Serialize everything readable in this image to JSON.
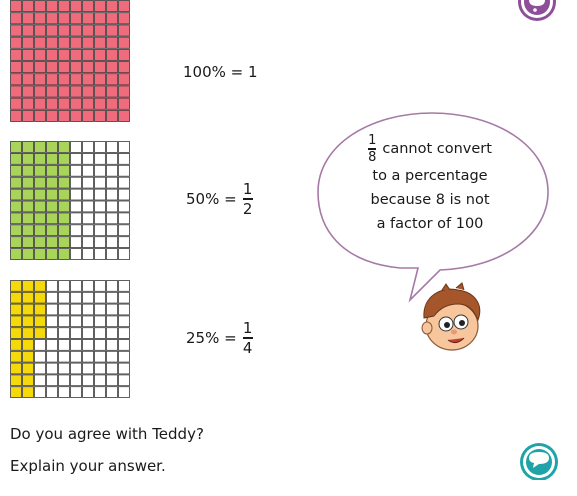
{
  "grids": [
    {
      "name": "grid-100",
      "fill_color": "#f06b7c",
      "filled_cells": 100,
      "total_cells": 100
    },
    {
      "name": "grid-50",
      "fill_color": "#a8d45a",
      "filled_cells": 50,
      "total_cells": 100
    },
    {
      "name": "grid-25",
      "fill_color": "#f5d90a",
      "filled_cells": 25,
      "total_cells": 100
    }
  ],
  "equations": [
    {
      "lhs": "100% = 1",
      "numerator": "",
      "denominator": ""
    },
    {
      "lhs": "50% =",
      "numerator": "1",
      "denominator": "2"
    },
    {
      "lhs": "25% =",
      "numerator": "1",
      "denominator": "4"
    }
  ],
  "bubble": {
    "fraction_numerator": "1",
    "fraction_denominator": "8",
    "line1_rest": "cannot convert",
    "line2": "to a percentage",
    "line3": "because 8 is not",
    "line4": "a factor of 100",
    "border_color": "#a57aa6"
  },
  "question": {
    "line1": "Do you agree with Teddy?",
    "line2": "Explain your answer."
  },
  "icons": {
    "top_right": "thought-bubble-icon",
    "bottom_right": "speech-bubble-icon",
    "character": "teddy-icon"
  }
}
